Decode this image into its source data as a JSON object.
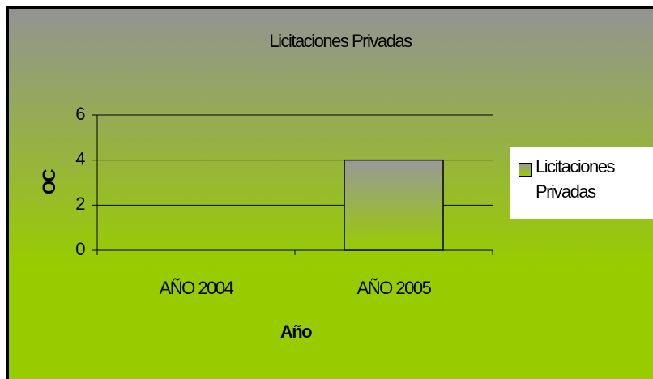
{
  "chart_data": {
    "type": "bar",
    "title": "Licitaciones Privadas",
    "categories": [
      "AÑO 2004",
      "AÑO 2005"
    ],
    "series": [
      {
        "name": "Licitaciones Privadas",
        "color": "#99cc00",
        "values": [
          0,
          4
        ]
      }
    ],
    "xlabel": "Año",
    "ylabel": "OC",
    "ylim": [
      0,
      6
    ],
    "yticks": [
      0,
      2,
      4,
      6
    ],
    "grid": true,
    "legend": "right"
  }
}
